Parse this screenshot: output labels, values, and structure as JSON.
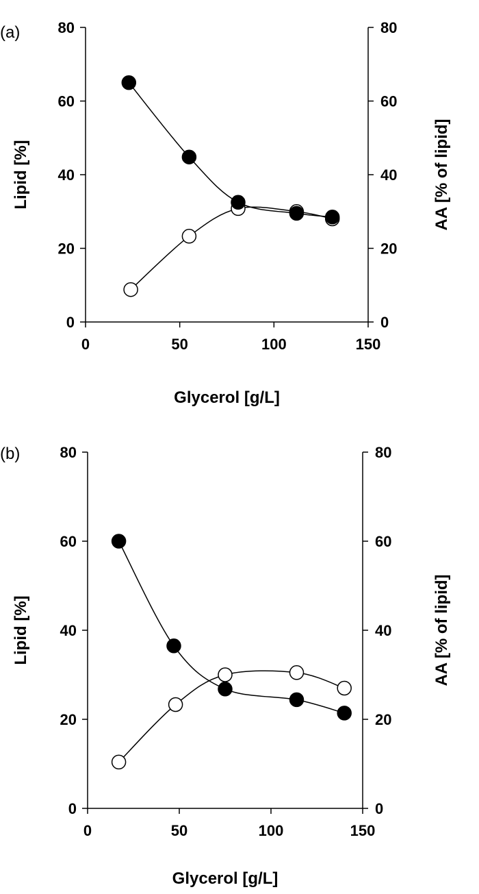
{
  "chart_data": [
    {
      "type": "scatter",
      "panel_label": "(a)",
      "xlabel": "Glycerol [g/L]",
      "ylabel_left": "Lipid [%]",
      "ylabel_right": "AA [% of lipid]",
      "xlim": [
        0,
        150
      ],
      "ylim": [
        0,
        80
      ],
      "xticks": [
        0,
        50,
        100,
        150
      ],
      "yticks": [
        0,
        20,
        40,
        60,
        80
      ],
      "grid": false,
      "series": [
        {
          "axis": "left",
          "marker": "filled-circle",
          "x": [
            23,
            55,
            81,
            112,
            131
          ],
          "y": [
            65,
            44.8,
            32.5,
            29.5,
            28.5
          ]
        },
        {
          "axis": "right",
          "marker": "open-circle",
          "x": [
            24,
            55,
            81,
            112,
            131
          ],
          "y": [
            8.8,
            23.3,
            30.8,
            30.0,
            28.0
          ]
        }
      ]
    },
    {
      "type": "scatter",
      "panel_label": "(b)",
      "xlabel": "Glycerol [g/L]",
      "ylabel_left": "Lipid [%]",
      "ylabel_right": "AA [% of lipid]",
      "xlim": [
        0,
        150
      ],
      "ylim": [
        0,
        80
      ],
      "xticks": [
        0,
        50,
        100,
        150
      ],
      "yticks": [
        0,
        20,
        40,
        60,
        80
      ],
      "grid": false,
      "series": [
        {
          "axis": "left",
          "marker": "filled-circle",
          "x": [
            17,
            47,
            75,
            114,
            140
          ],
          "y": [
            60,
            36.5,
            26.8,
            24.4,
            21.4
          ]
        },
        {
          "axis": "right",
          "marker": "open-circle",
          "x": [
            17,
            48,
            75,
            114,
            140
          ],
          "y": [
            10.4,
            23.3,
            30.0,
            30.5,
            27.0
          ]
        }
      ]
    }
  ]
}
